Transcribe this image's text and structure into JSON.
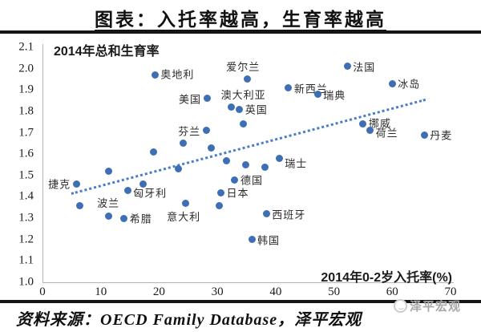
{
  "header": {
    "title": "图表：入托率越高，生育率越高"
  },
  "footer": {
    "source": "资料来源：OECD Family Database，泽平宏观",
    "watermark": "泽平宏观"
  },
  "chart_data": {
    "type": "scatter",
    "title": "图表：入托率越高，生育率越高",
    "y_axis_label": "2014年总和生育率",
    "x_axis_label": "2014年0-2岁入托率(%)",
    "xlim": [
      0,
      70
    ],
    "ylim": [
      1.0,
      2.1
    ],
    "x_ticks": [
      0,
      10,
      20,
      30,
      40,
      50,
      60,
      70
    ],
    "y_ticks": [
      1.0,
      1.1,
      1.2,
      1.3,
      1.4,
      1.5,
      1.6,
      1.7,
      1.8,
      1.9,
      2.0,
      2.1
    ],
    "grid": false,
    "legend": false,
    "marker_color": "#3E6FB5",
    "axis_color": "#b3b3b3",
    "trend_line": {
      "style": "dotted",
      "color": "#4A7CC7",
      "x1": 4.9,
      "y1": 1.42,
      "x2": 65.7,
      "y2": 1.86
    },
    "points": [
      {
        "label": "捷克",
        "x": 5.8,
        "y": 1.46,
        "label_pos": "left"
      },
      {
        "label": "",
        "x": 6.4,
        "y": 1.36
      },
      {
        "label": "波兰",
        "x": 11.3,
        "y": 1.31,
        "label_pos": "above"
      },
      {
        "label": "",
        "x": 11.3,
        "y": 1.52
      },
      {
        "label": "希腊",
        "x": 14.0,
        "y": 1.3,
        "label_pos": "right"
      },
      {
        "label": "匈牙利",
        "x": 14.6,
        "y": 1.43,
        "label_pos": "right",
        "ldy": 3
      },
      {
        "label": "",
        "x": 17.2,
        "y": 1.46
      },
      {
        "label": "",
        "x": 19.0,
        "y": 1.61
      },
      {
        "label": "奥地利",
        "x": 19.3,
        "y": 1.97,
        "label_pos": "right",
        "ldy": -2
      },
      {
        "label": "",
        "x": 23.3,
        "y": 1.53
      },
      {
        "label": "",
        "x": 24.1,
        "y": 1.65
      },
      {
        "label": "意大利",
        "x": 24.5,
        "y": 1.37,
        "label_pos": "below",
        "ldx": -2
      },
      {
        "label": "芬兰",
        "x": 28.1,
        "y": 1.71,
        "label_pos": "left"
      },
      {
        "label": "美国",
        "x": 28.2,
        "y": 1.86,
        "label_pos": "left"
      },
      {
        "label": "",
        "x": 28.9,
        "y": 1.63
      },
      {
        "label": "",
        "x": 30.3,
        "y": 1.36
      },
      {
        "label": "日本",
        "x": 30.6,
        "y": 1.42,
        "label_pos": "right"
      },
      {
        "label": "",
        "x": 31.5,
        "y": 1.57
      },
      {
        "label": "澳大利亚",
        "x": 32.4,
        "y": 1.82,
        "label_pos": "above",
        "ldx": 15
      },
      {
        "label": "德国",
        "x": 33.0,
        "y": 1.48,
        "label_pos": "right"
      },
      {
        "label": "英国",
        "x": 33.8,
        "y": 1.81,
        "label_pos": "right"
      },
      {
        "label": "",
        "x": 34.4,
        "y": 1.74
      },
      {
        "label": "",
        "x": 34.9,
        "y": 1.55
      },
      {
        "label": "爱尔兰",
        "x": 35.1,
        "y": 1.95,
        "label_pos": "above",
        "ldx": -5
      },
      {
        "label": "韩国",
        "x": 35.9,
        "y": 1.2,
        "label_pos": "right"
      },
      {
        "label": "",
        "x": 38.2,
        "y": 1.54
      },
      {
        "label": "西班牙",
        "x": 38.4,
        "y": 1.32,
        "label_pos": "right"
      },
      {
        "label": "瑞士",
        "x": 40.6,
        "y": 1.58,
        "label_pos": "right",
        "ldy": 5
      },
      {
        "label": "新西兰",
        "x": 42.2,
        "y": 1.91,
        "label_pos": "right"
      },
      {
        "label": "瑞典",
        "x": 47.2,
        "y": 1.88,
        "label_pos": "right"
      },
      {
        "label": "法国",
        "x": 52.3,
        "y": 2.01,
        "label_pos": "right"
      },
      {
        "label": "挪威",
        "x": 55.0,
        "y": 1.74,
        "label_pos": "right",
        "ldy": -2
      },
      {
        "label": "荷兰",
        "x": 56.2,
        "y": 1.71,
        "label_pos": "right",
        "ldy": 2
      },
      {
        "label": "冰岛",
        "x": 60.0,
        "y": 1.93,
        "label_pos": "right"
      },
      {
        "label": "丹麦",
        "x": 65.5,
        "y": 1.69,
        "label_pos": "right"
      }
    ]
  }
}
